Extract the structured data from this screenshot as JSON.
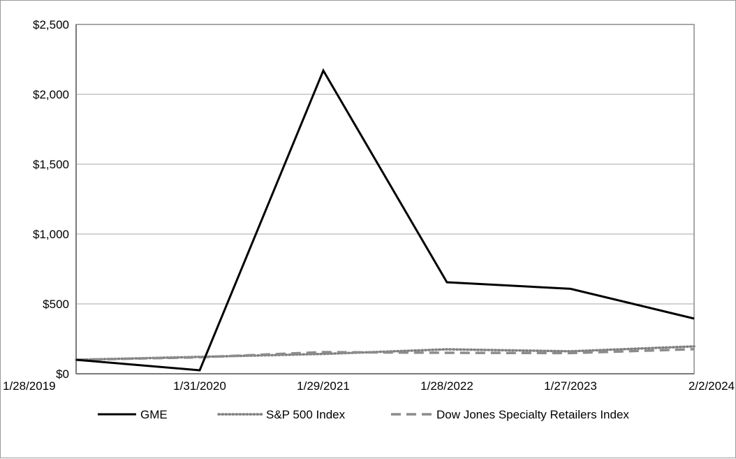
{
  "chart_data": {
    "type": "line",
    "title": "",
    "xlabel": "",
    "ylabel": "",
    "categories": [
      "1/28/2019",
      "1/31/2020",
      "1/29/2021",
      "1/28/2022",
      "1/27/2023",
      "2/2/2024"
    ],
    "ylim": [
      0,
      2500
    ],
    "y_ticks": [
      0,
      500,
      1000,
      1500,
      2000,
      2500
    ],
    "y_tick_labels": [
      "$0",
      "$500",
      "$1,000",
      "$1,500",
      "$2,000",
      "$2,500"
    ],
    "grid": true,
    "legend_position": "bottom",
    "series": [
      {
        "name": "GME",
        "values": [
          100,
          25,
          2170,
          655,
          608,
          395
        ],
        "color": "#000000",
        "style": "solid"
      },
      {
        "name": "S&P 500 Index",
        "values": [
          100,
          121,
          142,
          175,
          161,
          196
        ],
        "color": "#808080",
        "style": "dotted"
      },
      {
        "name": "Dow Jones Specialty Retailers Index",
        "values": [
          100,
          118,
          155,
          150,
          148,
          176
        ],
        "color": "#8c8c8c",
        "style": "dashed"
      }
    ]
  }
}
